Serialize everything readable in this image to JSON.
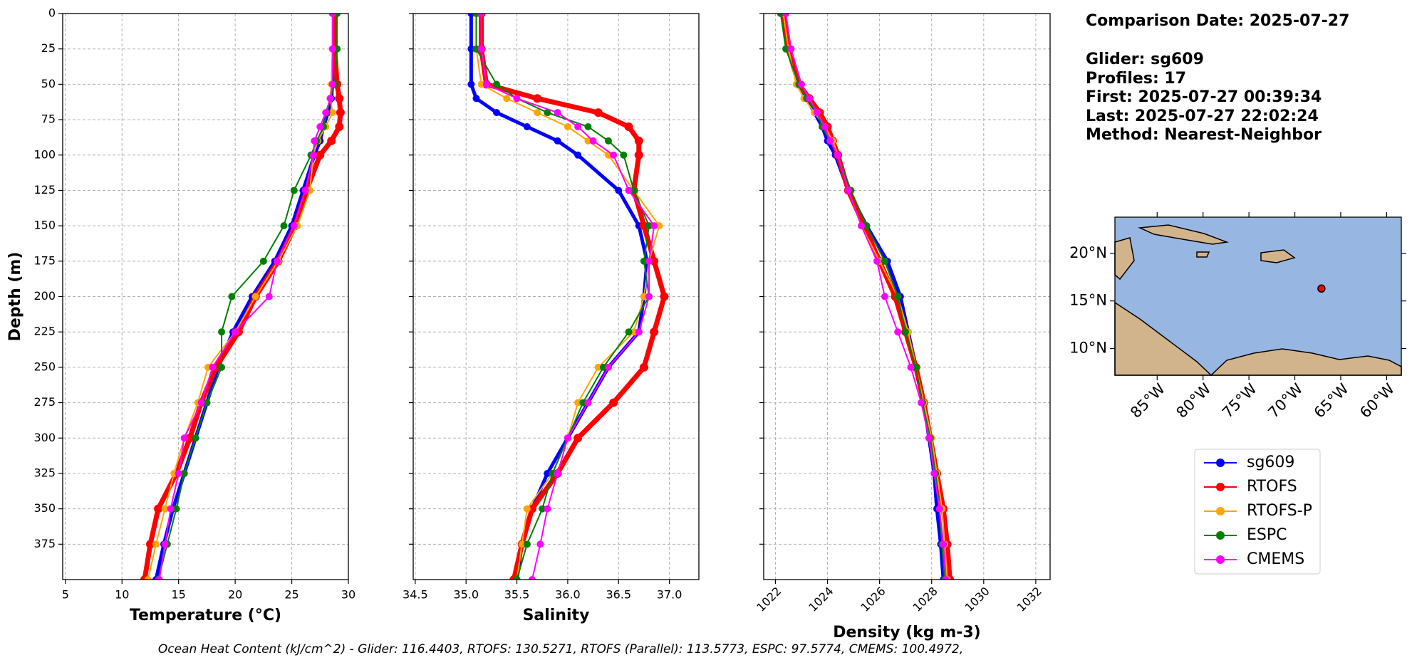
{
  "chart_data": [
    {
      "type": "line",
      "xlabel": "Temperature (°C)",
      "ylabel": "Depth (m)",
      "y": [
        0,
        25,
        50,
        60,
        70,
        80,
        90,
        100,
        125,
        150,
        175,
        200,
        225,
        250,
        275,
        300,
        325,
        350,
        375,
        400
      ],
      "xlim": [
        4.76,
        30
      ],
      "xticks": [
        5,
        10,
        15,
        20,
        25,
        30
      ],
      "ylim": [
        0,
        400
      ],
      "yticks": [
        0,
        25,
        50,
        75,
        100,
        125,
        150,
        175,
        200,
        225,
        250,
        275,
        300,
        325,
        350,
        375
      ],
      "y_inverted": true,
      "grid": true,
      "series": [
        {
          "name": "sg609",
          "color": "#0000ff",
          "values": [
            28.8,
            28.7,
            28.6,
            28.5,
            28.2,
            27.8,
            27.5,
            27.0,
            26.0,
            25.0,
            23.5,
            21.5,
            19.8,
            18.5,
            17.5,
            16.5,
            15.5,
            14.5,
            13.7,
            13.0
          ]
        },
        {
          "name": "RTOFS",
          "color": "#ff0000",
          "values": [
            28.8,
            28.8,
            29.0,
            29.2,
            29.3,
            29.2,
            28.5,
            27.5,
            26.3,
            25.3,
            23.8,
            21.8,
            20.3,
            18.3,
            17.0,
            16.0,
            14.8,
            13.2,
            12.5,
            12.0
          ]
        },
        {
          "name": "RTOFS-P",
          "color": "#ffa500",
          "values": [
            28.6,
            28.6,
            28.5,
            28.4,
            28.6,
            28.0,
            27.3,
            26.9,
            26.6,
            25.5,
            23.8,
            21.8,
            20.0,
            17.6,
            16.7,
            15.5,
            14.6,
            13.8,
            13.0,
            12.3
          ]
        },
        {
          "name": "ESPC",
          "color": "#008000",
          "values": [
            29.0,
            29.0,
            28.8,
            28.4,
            28.1,
            27.8,
            27.2,
            26.7,
            25.2,
            24.3,
            22.5,
            19.7,
            18.8,
            18.8,
            17.5,
            16.5,
            15.5,
            14.8,
            14.0,
            13.2
          ]
        },
        {
          "name": "CMEMS",
          "color": "#ff00ff",
          "values": [
            28.6,
            28.6,
            28.6,
            28.4,
            28.0,
            27.5,
            27.0,
            26.9,
            26.2,
            25.2,
            23.7,
            23.0,
            20.0,
            18.0,
            17.0,
            15.5,
            15.0,
            14.3,
            13.8,
            13.3
          ]
        }
      ]
    },
    {
      "type": "line",
      "xlabel": "Salinity",
      "y": [
        0,
        25,
        50,
        60,
        70,
        80,
        90,
        100,
        125,
        150,
        175,
        200,
        225,
        250,
        275,
        300,
        325,
        350,
        375,
        400
      ],
      "xlim": [
        34.48,
        37.29
      ],
      "xticks": [
        34.5,
        {
          "value": 35,
          "label": "35.0"
        },
        35.5,
        {
          "value": 36,
          "label": "36.0"
        },
        36.5,
        {
          "value": 37,
          "label": "37.0"
        }
      ],
      "ylim": [
        0,
        400
      ],
      "yticks": [
        0,
        25,
        50,
        75,
        100,
        125,
        150,
        175,
        200,
        225,
        250,
        275,
        300,
        325,
        350,
        375
      ],
      "y_inverted": true,
      "grid": true,
      "series": [
        {
          "color": "#0000ff",
          "values": [
            35.05,
            35.05,
            35.05,
            35.1,
            35.3,
            35.6,
            35.9,
            36.1,
            36.5,
            36.7,
            36.78,
            36.75,
            36.7,
            36.4,
            36.2,
            36.0,
            35.8,
            35.65,
            35.55,
            35.5
          ]
        },
        {
          "color": "#ff0000",
          "values": [
            35.15,
            35.15,
            35.2,
            35.7,
            36.3,
            36.6,
            36.7,
            36.7,
            36.65,
            36.75,
            36.85,
            36.95,
            36.85,
            36.75,
            36.45,
            36.1,
            35.9,
            35.65,
            35.55,
            35.47
          ]
        },
        {
          "color": "#ffa500",
          "values": [
            35.1,
            35.1,
            35.15,
            35.4,
            35.7,
            36.0,
            36.2,
            36.4,
            36.65,
            36.9,
            36.8,
            36.75,
            36.65,
            36.3,
            36.1,
            36.0,
            35.85,
            35.6,
            35.55,
            35.5
          ]
        },
        {
          "color": "#008000",
          "values": [
            35.1,
            35.1,
            35.3,
            35.5,
            35.8,
            36.2,
            36.4,
            36.55,
            36.65,
            36.8,
            36.75,
            36.8,
            36.6,
            36.35,
            36.15,
            36.0,
            35.85,
            35.75,
            35.6,
            35.5
          ]
        },
        {
          "color": "#ff00ff",
          "values": [
            35.15,
            35.15,
            35.2,
            35.5,
            35.9,
            36.1,
            36.25,
            36.45,
            36.6,
            36.85,
            36.8,
            36.8,
            36.7,
            36.4,
            36.2,
            36.0,
            35.9,
            35.8,
            35.73,
            35.65
          ]
        }
      ]
    },
    {
      "type": "line",
      "xlabel": "Density (kg m-3)",
      "y": [
        0,
        25,
        50,
        60,
        70,
        80,
        90,
        100,
        125,
        150,
        175,
        200,
        225,
        250,
        275,
        300,
        325,
        350,
        375,
        400
      ],
      "xlim": [
        1021.55,
        1032.55
      ],
      "xticks": [
        1022,
        1024,
        1026,
        1028,
        1030,
        1032
      ],
      "xtick_rotation": 45,
      "ylim": [
        0,
        400
      ],
      "yticks": [
        0,
        25,
        50,
        75,
        100,
        125,
        150,
        175,
        200,
        225,
        250,
        275,
        300,
        325,
        350,
        375
      ],
      "y_inverted": true,
      "grid": true,
      "series": [
        {
          "color": "#0000ff",
          "values": [
            1022.3,
            1022.5,
            1022.9,
            1023.2,
            1023.5,
            1023.8,
            1024.0,
            1024.3,
            1024.8,
            1025.5,
            1026.3,
            1026.8,
            1027.1,
            1027.4,
            1027.7,
            1027.9,
            1028.1,
            1028.2,
            1028.35,
            1028.45
          ]
        },
        {
          "color": "#ff0000",
          "values": [
            1022.3,
            1022.5,
            1022.9,
            1023.3,
            1023.7,
            1024.0,
            1024.2,
            1024.4,
            1024.8,
            1025.4,
            1026.0,
            1026.6,
            1027.0,
            1027.4,
            1027.7,
            1027.95,
            1028.2,
            1028.45,
            1028.6,
            1028.7
          ]
        },
        {
          "color": "#ffa500",
          "values": [
            1022.3,
            1022.5,
            1022.8,
            1023.1,
            1023.5,
            1023.9,
            1024.2,
            1024.4,
            1024.8,
            1025.3,
            1026.0,
            1026.7,
            1027.1,
            1027.4,
            1027.7,
            1028.0,
            1028.2,
            1028.4,
            1028.5,
            1028.6
          ]
        },
        {
          "color": "#008000",
          "values": [
            1022.2,
            1022.4,
            1022.9,
            1023.2,
            1023.6,
            1023.8,
            1024.1,
            1024.4,
            1024.9,
            1025.5,
            1026.2,
            1026.7,
            1027.0,
            1027.4,
            1027.65,
            1027.95,
            1028.15,
            1028.3,
            1028.4,
            1028.5
          ]
        },
        {
          "color": "#ff00ff",
          "values": [
            1022.4,
            1022.6,
            1023.0,
            1023.3,
            1023.6,
            1023.9,
            1024.1,
            1024.4,
            1024.8,
            1025.3,
            1025.9,
            1026.2,
            1026.7,
            1027.2,
            1027.6,
            1027.9,
            1028.1,
            1028.3,
            1028.45,
            1028.55
          ]
        }
      ]
    }
  ],
  "info": [
    "Comparison Date: 2025-07-27",
    "Glider: sg609",
    "Profiles: 17",
    "First: 2025-07-27 00:39:34",
    "Last: 2025-07-27 22:02:24",
    "Method: Nearest-Neighbor"
  ],
  "map": {
    "xlim": [
      -89.6,
      -58.4
    ],
    "ylim": [
      7.2,
      23.8
    ],
    "xticks": [
      {
        "value": -85,
        "label": "85°W"
      },
      {
        "value": -80,
        "label": "80°W"
      },
      {
        "value": -75,
        "label": "75°W"
      },
      {
        "value": -70,
        "label": "70°W"
      },
      {
        "value": -65,
        "label": "65°W"
      },
      {
        "value": -60,
        "label": "60°W"
      }
    ],
    "yticks": [
      {
        "value": 10,
        "label": "10°N"
      },
      {
        "value": 15,
        "label": "15°N"
      },
      {
        "value": 20,
        "label": "20°N"
      }
    ],
    "point": {
      "lon": -67.1,
      "lat": 16.3,
      "color": "#ff0000"
    }
  },
  "footer": "Ocean Heat Content (kJ/cm^2) - Glider: 116.4403,  RTOFS: 130.5271,  RTOFS (Parallel): 113.5773,  ESPC: 97.5774,  CMEMS: 100.4972,"
}
